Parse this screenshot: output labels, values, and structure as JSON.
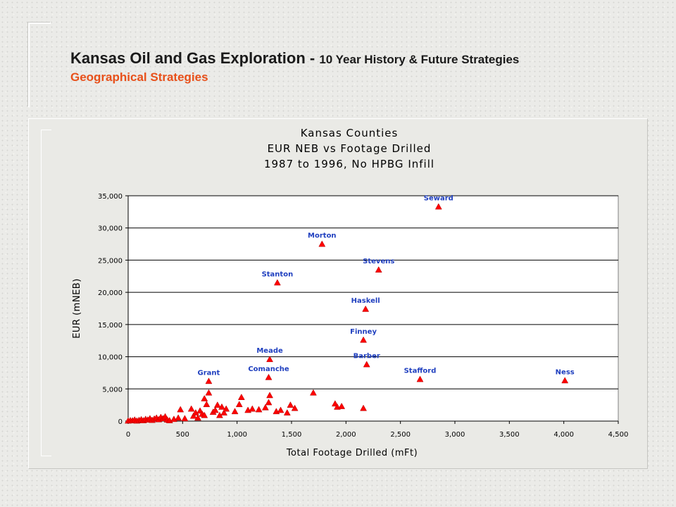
{
  "header": {
    "title_main": "Kansas Oil and Gas Exploration - ",
    "title_sub_inline": "10 Year History & Future Strategies",
    "subtitle": "Geographical Strategies"
  },
  "colors": {
    "marker": "#ff0000",
    "label": "#1f3fbf",
    "subtitle": "#e8501a",
    "plot_bg": "#ffffff"
  },
  "chart_data": {
    "type": "scatter",
    "title": [
      "Kansas Counties",
      "EUR NEB vs Footage Drilled",
      "1987 to 1996, No HPBG Infill"
    ],
    "xlabel": "Total Footage Drilled (mFt)",
    "ylabel": "EUR (mNEB)",
    "xlim": [
      0,
      4500
    ],
    "ylim": [
      0,
      35000
    ],
    "xticks": [
      0,
      500,
      1000,
      1500,
      2000,
      2500,
      3000,
      3500,
      4000,
      4500
    ],
    "xtick_labels": [
      "0",
      "500",
      "1,000",
      "1,500",
      "2,000",
      "2,500",
      "3,000",
      "3,500",
      "4,000",
      "4,500"
    ],
    "yticks": [
      0,
      5000,
      10000,
      15000,
      20000,
      25000,
      30000,
      35000
    ],
    "ytick_labels": [
      "0",
      "5,000",
      "10,000",
      "15,000",
      "20,000",
      "25,000",
      "30,000",
      "35,000"
    ],
    "grid": "horizontal",
    "labeled_points": [
      {
        "label": "Seward",
        "x": 2850,
        "y": 33300
      },
      {
        "label": "Morton",
        "x": 1780,
        "y": 27500
      },
      {
        "label": "Stevens",
        "x": 2300,
        "y": 23500
      },
      {
        "label": "Stanton",
        "x": 1370,
        "y": 21500
      },
      {
        "label": "Haskell",
        "x": 2180,
        "y": 17400
      },
      {
        "label": "Finney",
        "x": 2160,
        "y": 12600
      },
      {
        "label": "Meade",
        "x": 1300,
        "y": 9600
      },
      {
        "label": "Barber",
        "x": 2190,
        "y": 8800
      },
      {
        "label": "Grant",
        "x": 740,
        "y": 6200
      },
      {
        "label": "Comanche",
        "x": 1290,
        "y": 6800
      },
      {
        "label": "Stafford",
        "x": 2680,
        "y": 6500
      },
      {
        "label": "Ness",
        "x": 4010,
        "y": 6300
      }
    ],
    "points": [
      [
        0,
        50
      ],
      [
        20,
        100
      ],
      [
        40,
        80
      ],
      [
        60,
        200
      ],
      [
        80,
        50
      ],
      [
        100,
        150
      ],
      [
        120,
        250
      ],
      [
        140,
        100
      ],
      [
        160,
        300
      ],
      [
        180,
        200
      ],
      [
        200,
        400
      ],
      [
        220,
        150
      ],
      [
        240,
        350
      ],
      [
        260,
        500
      ],
      [
        280,
        250
      ],
      [
        300,
        600
      ],
      [
        320,
        400
      ],
      [
        340,
        700
      ],
      [
        360,
        200
      ],
      [
        380,
        100
      ],
      [
        420,
        300
      ],
      [
        460,
        500
      ],
      [
        480,
        1800
      ],
      [
        520,
        400
      ],
      [
        580,
        1900
      ],
      [
        600,
        800
      ],
      [
        620,
        1300
      ],
      [
        640,
        500
      ],
      [
        660,
        1600
      ],
      [
        680,
        1100
      ],
      [
        700,
        900
      ],
      [
        700,
        3500
      ],
      [
        720,
        2600
      ],
      [
        740,
        4400
      ],
      [
        780,
        1400
      ],
      [
        800,
        1700
      ],
      [
        820,
        2500
      ],
      [
        840,
        900
      ],
      [
        860,
        2200
      ],
      [
        880,
        1300
      ],
      [
        900,
        1900
      ],
      [
        980,
        1500
      ],
      [
        1020,
        2600
      ],
      [
        1040,
        3700
      ],
      [
        1100,
        1700
      ],
      [
        1140,
        1900
      ],
      [
        1200,
        1800
      ],
      [
        1260,
        2100
      ],
      [
        1290,
        2900
      ],
      [
        1300,
        4000
      ],
      [
        1360,
        1500
      ],
      [
        1400,
        1700
      ],
      [
        1460,
        1300
      ],
      [
        1490,
        2500
      ],
      [
        1530,
        2000
      ],
      [
        1700,
        4400
      ],
      [
        1900,
        2700
      ],
      [
        1920,
        2200
      ],
      [
        1960,
        2300
      ],
      [
        2160,
        2000
      ]
    ]
  }
}
